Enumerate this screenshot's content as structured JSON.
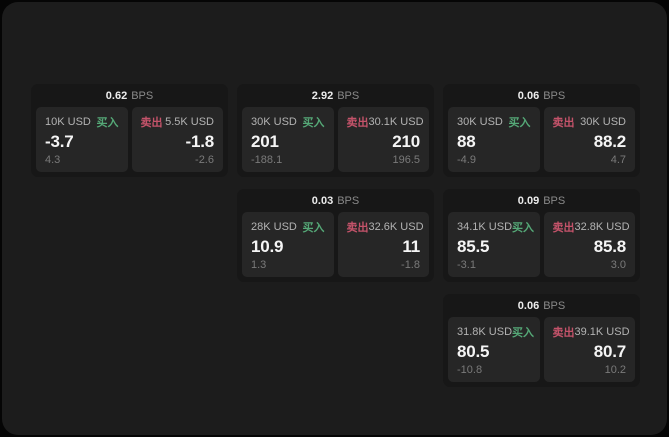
{
  "labels": {
    "buy": "买入",
    "sell": "卖出",
    "unit": "BPS"
  },
  "colors": {
    "buy": "#55a877",
    "sell": "#c4536a"
  },
  "cards": [
    {
      "bps": "0.62",
      "row": 1,
      "col": 1,
      "buy": {
        "size": "10K USD",
        "value": "-3.7",
        "sub": "4.3"
      },
      "sell": {
        "size": "5.5K USD",
        "value": "-1.8",
        "sub": "-2.6"
      }
    },
    {
      "bps": "2.92",
      "row": 1,
      "col": 2,
      "buy": {
        "size": "30K USD",
        "value": "201",
        "sub": "-188.1"
      },
      "sell": {
        "size": "30.1K USD",
        "value": "210",
        "sub": "196.5"
      }
    },
    {
      "bps": "0.06",
      "row": 1,
      "col": 3,
      "buy": {
        "size": "30K USD",
        "value": "88",
        "sub": "-4.9"
      },
      "sell": {
        "size": "30K USD",
        "value": "88.2",
        "sub": "4.7"
      }
    },
    {
      "bps": "0.03",
      "row": 2,
      "col": 2,
      "buy": {
        "size": "28K USD",
        "value": "10.9",
        "sub": "1.3"
      },
      "sell": {
        "size": "32.6K USD",
        "value": "11",
        "sub": "-1.8"
      }
    },
    {
      "bps": "0.09",
      "row": 2,
      "col": 3,
      "buy": {
        "size": "34.1K USD",
        "value": "85.5",
        "sub": "-3.1"
      },
      "sell": {
        "size": "32.8K USD",
        "value": "85.8",
        "sub": "3.0"
      }
    },
    {
      "bps": "0.06",
      "row": 3,
      "col": 3,
      "buy": {
        "size": "31.8K USD",
        "value": "80.5",
        "sub": "-10.8"
      },
      "sell": {
        "size": "39.1K USD",
        "value": "80.7",
        "sub": "10.2"
      }
    }
  ]
}
